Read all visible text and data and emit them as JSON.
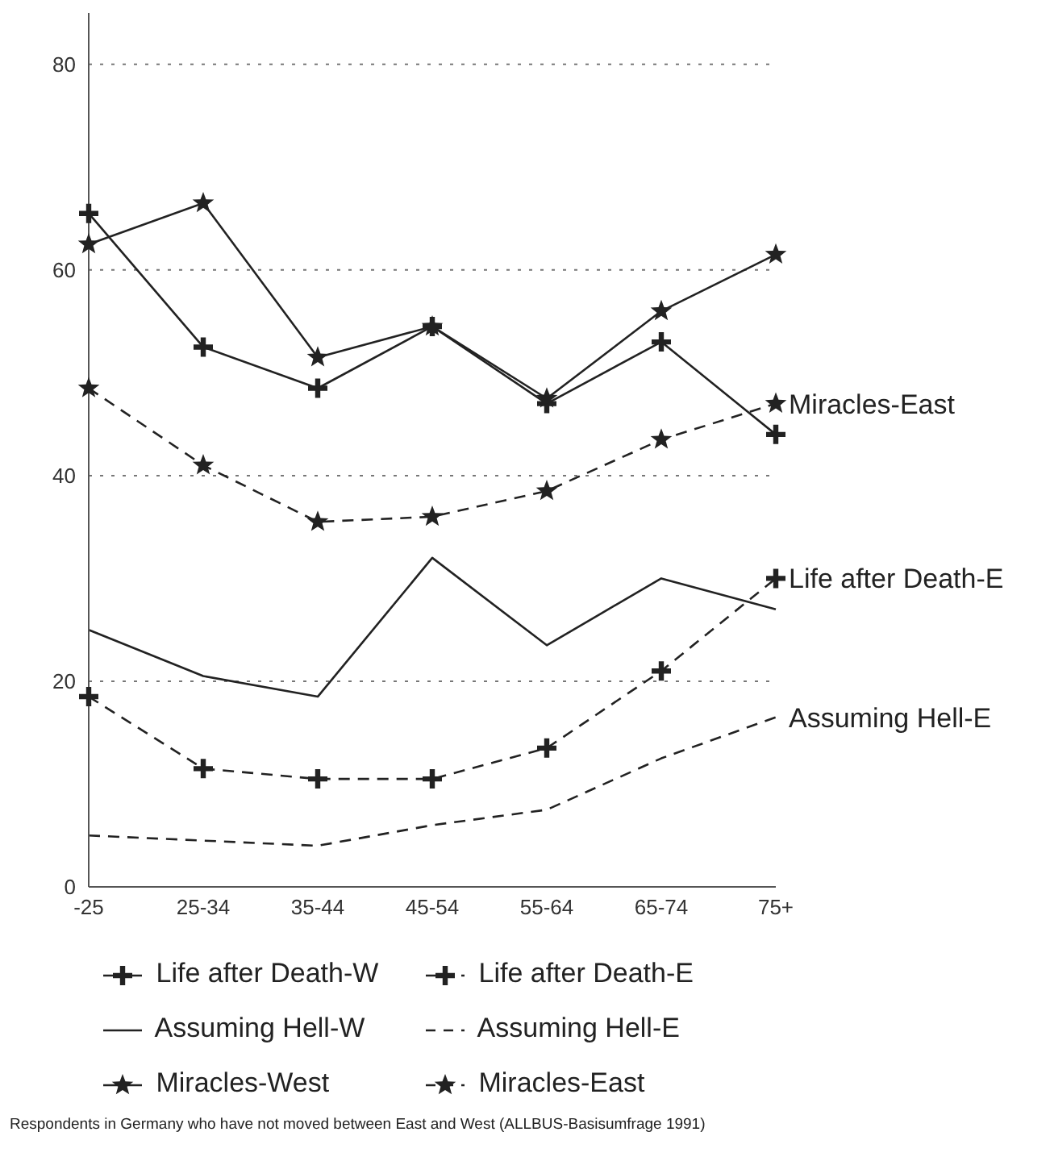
{
  "chart_data": {
    "type": "line",
    "categories": [
      "-25",
      "25-34",
      "35-44",
      "45-54",
      "55-64",
      "65-74",
      "75+"
    ],
    "series": [
      {
        "name": "Life after Death-W",
        "color": "#222222",
        "marker": "cross",
        "line_style": "solid",
        "values": [
          65.5,
          52.5,
          48.5,
          54.5,
          47,
          53,
          44
        ]
      },
      {
        "name": "Life after Death-E",
        "color": "#222222",
        "marker": "cross",
        "line_style": "dashed",
        "values": [
          18.5,
          11.5,
          10.5,
          10.5,
          13.5,
          21,
          30
        ]
      },
      {
        "name": "Assuming Hell-W",
        "color": "#222222",
        "marker": "none",
        "line_style": "solid",
        "values": [
          25,
          20.5,
          18.5,
          32,
          23.5,
          30,
          27
        ]
      },
      {
        "name": "Assuming Hell-E",
        "color": "#222222",
        "marker": "none",
        "line_style": "dashed",
        "values": [
          5,
          4.5,
          4,
          6,
          7.5,
          12.5,
          16.5
        ]
      },
      {
        "name": "Miracles-West",
        "color": "#222222",
        "marker": "star",
        "line_style": "solid",
        "values": [
          62.5,
          66.5,
          51.5,
          54.5,
          47.5,
          56,
          61.5
        ]
      },
      {
        "name": "Miracles-East",
        "color": "#222222",
        "marker": "star",
        "line_style": "dashed",
        "values": [
          48.5,
          41,
          35.5,
          36,
          38.5,
          43.5,
          47
        ]
      }
    ],
    "ylim": [
      0,
      85
    ],
    "yticks": [
      0,
      20,
      40,
      60,
      80
    ],
    "grid": "y",
    "legend": "bottom",
    "annotations": [
      {
        "text": "Miracles-East",
        "x": "75+",
        "y": 47
      },
      {
        "text": "Life after Death-E",
        "x": "75+",
        "y": 30
      },
      {
        "text": "Assuming Hell-E",
        "x": "75+",
        "y": 16.5
      },
      "Respondents in Germany who have not moved between East and West (ALLBUS-Basisumfrage 1991)"
    ]
  }
}
